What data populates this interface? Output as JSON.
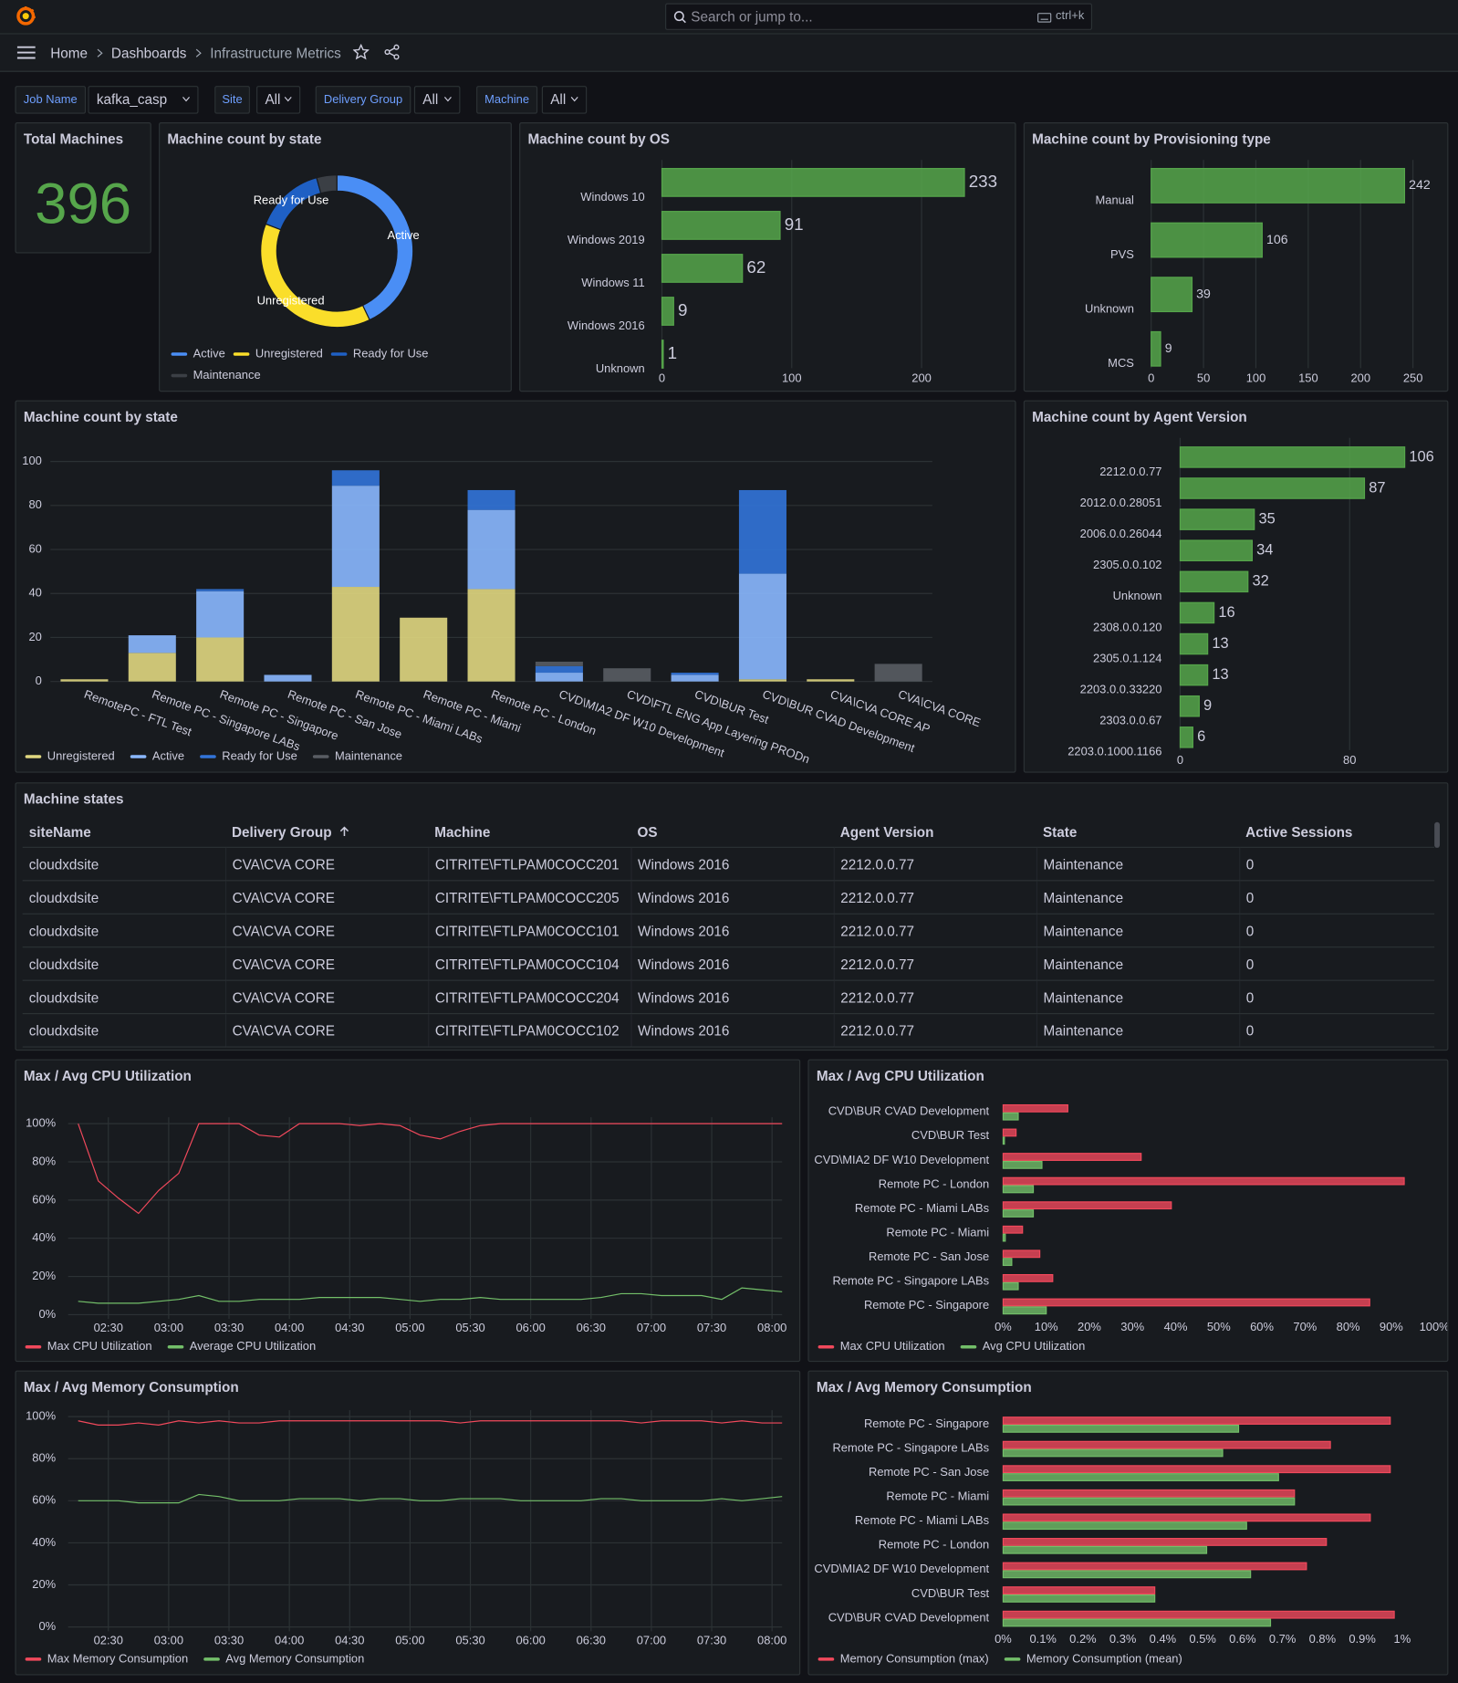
{
  "header": {
    "search_placeholder": "Search or jump to...",
    "shortcut": "ctrl+k",
    "breadcrumbs": [
      "Home",
      "Dashboards",
      "Infrastructure Metrics"
    ]
  },
  "filters": [
    {
      "label": "Job Name",
      "value": "kafka_casp"
    },
    {
      "label": "Site",
      "value": "All"
    },
    {
      "label": "Delivery Group",
      "value": "All"
    },
    {
      "label": "Machine",
      "value": "All"
    }
  ],
  "stat": {
    "title": "Total Machines",
    "value": 396,
    "color": "#56a64b"
  },
  "chart_data": [
    {
      "type": "pie",
      "title": "Machine count by state",
      "donut": true,
      "labels": [
        "Active",
        "Unregistered",
        "Ready for Use",
        "Maintenance"
      ],
      "values": [
        170,
        150,
        59,
        17
      ],
      "colors": [
        "#4a8ef5",
        "#fade2a",
        "#1f60c4",
        "#3b3f45"
      ],
      "legend": "bottom"
    },
    {
      "type": "hbar",
      "title": "Machine count by OS",
      "categories": [
        "Windows 10",
        "Windows 2019",
        "Windows 11",
        "Windows 2016",
        "Unknown"
      ],
      "values": [
        233,
        91,
        62,
        9,
        1
      ],
      "color": "#56a64b",
      "xlim": [
        0,
        250
      ],
      "xticks": [
        0,
        100,
        200
      ],
      "grid": true
    },
    {
      "type": "hbar",
      "title": "Machine count by Provisioning type",
      "categories": [
        "Manual",
        "PVS",
        "Unknown",
        "MCS"
      ],
      "values": [
        242,
        106,
        39,
        9
      ],
      "color": "#56a64b",
      "xlim": [
        0,
        275
      ],
      "xticks": [
        0,
        50,
        100,
        150,
        200,
        250
      ],
      "grid": true
    },
    {
      "type": "stacked_bar",
      "title": "Machine count by state",
      "categories": [
        "RemotePC - FTL Test",
        "Remote PC - Singapore LABs",
        "Remote PC - Singapore",
        "Remote PC - San Jose",
        "Remote PC - Miami LABs",
        "Remote PC - Miami",
        "Remote PC - London",
        "CVD\\MIA2 DF W10 Development",
        "CVD\\FTL ENG App Layering PRODn",
        "CVD\\BUR Test",
        "CVD\\BUR CVAD Development",
        "CVA\\CVA CORE AP",
        "CVA\\CVA CORE"
      ],
      "series": [
        {
          "name": "Unregistered",
          "color": "#e0d780",
          "values": [
            1,
            13,
            20,
            0,
            43,
            29,
            42,
            0,
            0,
            0,
            1,
            1,
            0
          ]
        },
        {
          "name": "Active",
          "color": "#8ab8ff",
          "values": [
            0,
            8,
            21,
            3,
            46,
            0,
            36,
            4,
            0,
            3,
            48,
            0,
            0
          ]
        },
        {
          "name": "Ready for Use",
          "color": "#3274d9",
          "values": [
            0,
            0,
            1,
            0,
            7,
            0,
            9,
            3,
            0,
            1,
            38,
            0,
            0
          ]
        },
        {
          "name": "Maintenance",
          "color": "#595d63",
          "values": [
            0,
            0,
            0,
            0,
            0,
            0,
            0,
            2,
            6,
            0,
            0,
            0,
            8
          ]
        }
      ],
      "ylim": [
        0,
        100
      ],
      "yticks": [
        0,
        20,
        40,
        60,
        80,
        100
      ],
      "grid": true,
      "legend": "bottom"
    },
    {
      "type": "hbar",
      "title": "Machine count by Agent Version",
      "categories": [
        "2212.0.0.77",
        "2012.0.0.28051",
        "2006.0.0.26044",
        "2305.0.0.102",
        "Unknown",
        "2308.0.0.120",
        "2305.0.1.124",
        "2203.0.0.33220",
        "2303.0.0.67",
        "2203.0.1000.1166"
      ],
      "values": [
        106,
        87,
        35,
        34,
        32,
        16,
        13,
        13,
        9,
        6
      ],
      "color": "#56a64b",
      "xlim": [
        0,
        120
      ],
      "xticks": [
        0,
        80
      ],
      "grid": true
    },
    {
      "type": "line",
      "title": "Max / Avg CPU Utilization",
      "x": [
        "02:15",
        "02:25",
        "02:35",
        "02:45",
        "02:55",
        "03:05",
        "03:15",
        "03:25",
        "03:35",
        "03:45",
        "03:55",
        "04:05",
        "04:15",
        "04:25",
        "04:35",
        "04:45",
        "04:55",
        "05:05",
        "05:15",
        "05:25",
        "05:35",
        "05:45",
        "05:55",
        "06:05",
        "06:15",
        "06:25",
        "06:35",
        "06:45",
        "06:55",
        "07:05",
        "07:15",
        "07:25",
        "07:35",
        "07:45",
        "07:55",
        "08:05"
      ],
      "series": [
        {
          "name": "Max CPU Utilization",
          "color": "#f2495c",
          "values": [
            100,
            70,
            61,
            53,
            65,
            74,
            100,
            100,
            100,
            94,
            93,
            100,
            100,
            100,
            99,
            100,
            99,
            94,
            92,
            96,
            99,
            100,
            100,
            100,
            100,
            100,
            100,
            100,
            100,
            100,
            100,
            100,
            100,
            100,
            100,
            100
          ]
        },
        {
          "name": "Average CPU Utilization",
          "color": "#73bf69",
          "values": [
            7,
            6,
            6,
            6,
            7,
            8,
            10,
            7,
            7,
            8,
            8,
            8,
            9,
            9,
            9,
            9,
            8,
            7,
            8,
            8,
            9,
            8,
            8,
            8,
            8,
            8,
            9,
            11,
            11,
            10,
            10,
            10,
            8,
            14,
            13,
            12
          ]
        }
      ],
      "xlim": [
        "02:10",
        "08:05"
      ],
      "xticks": [
        "02:30",
        "03:00",
        "03:30",
        "04:00",
        "04:30",
        "05:00",
        "05:30",
        "06:00",
        "06:30",
        "07:00",
        "07:30",
        "08:00"
      ],
      "ylim": [
        0,
        100
      ],
      "yticks": [
        {
          "value": 0,
          "label": "0%"
        },
        {
          "value": 20,
          "label": "20%"
        },
        {
          "value": 40,
          "label": "40%"
        },
        {
          "value": 60,
          "label": "60%"
        },
        {
          "value": 80,
          "label": "80%"
        },
        {
          "value": 100,
          "label": "100%"
        }
      ],
      "grid": true,
      "legend": "bottom"
    },
    {
      "type": "grouped_hbar",
      "title": "Max / Avg CPU Utilization",
      "categories": [
        "CVD\\BUR CVAD Development",
        "CVD\\BUR Test",
        "CVD\\MIA2 DF W10 Development",
        "Remote PC - London",
        "Remote PC - Miami LABs",
        "Remote PC - Miami",
        "Remote PC - San Jose",
        "Remote PC - Singapore LABs",
        "Remote PC - Singapore"
      ],
      "series": [
        {
          "name": "Max CPU Utilization",
          "color": "#f2495c",
          "values": [
            15,
            3,
            32,
            93,
            39,
            4.5,
            8.5,
            11.5,
            85
          ]
        },
        {
          "name": "Avg CPU Utilization",
          "color": "#73bf69",
          "values": [
            3.5,
            0.3,
            9,
            7,
            7,
            0.5,
            2,
            3.5,
            10
          ]
        }
      ],
      "xlim": [
        0,
        100
      ],
      "xticks": [
        {
          "value": 0,
          "label": "0%"
        },
        {
          "value": 10,
          "label": "10%"
        },
        {
          "value": 20,
          "label": "20%"
        },
        {
          "value": 30,
          "label": "30%"
        },
        {
          "value": 40,
          "label": "40%"
        },
        {
          "value": 50,
          "label": "50%"
        },
        {
          "value": 60,
          "label": "60%"
        },
        {
          "value": 70,
          "label": "70%"
        },
        {
          "value": 80,
          "label": "80%"
        },
        {
          "value": 90,
          "label": "90%"
        },
        {
          "value": 100,
          "label": "100%"
        }
      ],
      "legend": "bottom"
    },
    {
      "type": "line",
      "title": "Max / Avg Memory Consumption",
      "x": [
        "02:15",
        "02:25",
        "02:35",
        "02:45",
        "02:55",
        "03:05",
        "03:15",
        "03:25",
        "03:35",
        "03:45",
        "03:55",
        "04:05",
        "04:15",
        "04:25",
        "04:35",
        "04:45",
        "04:55",
        "05:05",
        "05:15",
        "05:25",
        "05:35",
        "05:45",
        "05:55",
        "06:05",
        "06:15",
        "06:25",
        "06:35",
        "06:45",
        "06:55",
        "07:05",
        "07:15",
        "07:25",
        "07:35",
        "07:45",
        "07:55",
        "08:05"
      ],
      "series": [
        {
          "name": "Max Memory Consumption",
          "color": "#f2495c",
          "values": [
            98,
            96,
            96,
            97,
            96,
            98,
            97,
            98,
            97,
            97,
            98,
            98,
            98,
            98,
            98,
            98,
            98,
            98,
            98,
            97,
            98,
            98,
            98,
            98,
            98,
            98,
            98,
            98,
            97,
            98,
            98,
            98,
            97,
            98,
            97,
            97
          ]
        },
        {
          "name": "Avg Memory Consumption",
          "color": "#73bf69",
          "values": [
            60,
            60,
            60,
            59,
            59,
            59,
            63,
            62,
            60,
            60,
            60,
            61,
            61,
            61,
            60,
            61,
            61,
            60,
            60,
            61,
            61,
            61,
            60,
            60,
            60,
            60,
            61,
            61,
            60,
            60,
            60,
            60,
            61,
            60,
            61,
            62
          ]
        }
      ],
      "xlim": [
        "02:10",
        "08:05"
      ],
      "xticks": [
        "02:30",
        "03:00",
        "03:30",
        "04:00",
        "04:30",
        "05:00",
        "05:30",
        "06:00",
        "06:30",
        "07:00",
        "07:30",
        "08:00"
      ],
      "ylim": [
        0,
        100
      ],
      "yticks": [
        {
          "value": 0,
          "label": "0%"
        },
        {
          "value": 20,
          "label": "20%"
        },
        {
          "value": 40,
          "label": "40%"
        },
        {
          "value": 60,
          "label": "60%"
        },
        {
          "value": 80,
          "label": "80%"
        },
        {
          "value": 100,
          "label": "100%"
        }
      ],
      "grid": true,
      "legend": "bottom"
    },
    {
      "type": "grouped_hbar",
      "title": "Max / Avg Memory Consumption",
      "categories": [
        "Remote PC - Singapore",
        "Remote PC - Singapore LABs",
        "Remote PC - San Jose",
        "Remote PC - Miami",
        "Remote PC - Miami LABs",
        "Remote PC - London",
        "CVD\\MIA2 DF W10 Development",
        "CVD\\BUR Test",
        "CVD\\BUR CVAD Development"
      ],
      "series": [
        {
          "name": "Memory Consumption (max)",
          "color": "#f2495c",
          "values": [
            0.97,
            0.82,
            0.97,
            0.73,
            0.92,
            0.81,
            0.76,
            0.38,
            0.98
          ]
        },
        {
          "name": "Memory Consumption (mean)",
          "color": "#73bf69",
          "values": [
            0.59,
            0.55,
            0.69,
            0.73,
            0.61,
            0.51,
            0.62,
            0.38,
            0.67
          ]
        }
      ],
      "xlim": [
        0,
        1
      ],
      "xticks": [
        {
          "value": 0,
          "label": "0%"
        },
        {
          "value": 0.1,
          "label": "0.1%"
        },
        {
          "value": 0.2,
          "label": "0.2%"
        },
        {
          "value": 0.3,
          "label": "0.3%"
        },
        {
          "value": 0.4,
          "label": "0.4%"
        },
        {
          "value": 0.5,
          "label": "0.5%"
        },
        {
          "value": 0.6,
          "label": "0.6%"
        },
        {
          "value": 0.7,
          "label": "0.7%"
        },
        {
          "value": 0.8,
          "label": "0.8%"
        },
        {
          "value": 0.9,
          "label": "0.9%"
        },
        {
          "value": 1,
          "label": "1%"
        }
      ],
      "legend": "bottom"
    }
  ],
  "table": {
    "title": "Machine states",
    "columns": [
      "siteName",
      "Delivery Group",
      "Machine",
      "OS",
      "Agent Version",
      "State",
      "Active Sessions"
    ],
    "rows": [
      [
        "cloudxdsite",
        "CVA\\CVA CORE",
        "CITRITE\\FTLPAM0COCC201",
        "Windows 2016",
        "2212.0.0.77",
        "Maintenance",
        0
      ],
      [
        "cloudxdsite",
        "CVA\\CVA CORE",
        "CITRITE\\FTLPAM0COCC205",
        "Windows 2016",
        "2212.0.0.77",
        "Maintenance",
        0
      ],
      [
        "cloudxdsite",
        "CVA\\CVA CORE",
        "CITRITE\\FTLPAM0COCC101",
        "Windows 2016",
        "2212.0.0.77",
        "Maintenance",
        0
      ],
      [
        "cloudxdsite",
        "CVA\\CVA CORE",
        "CITRITE\\FTLPAM0COCC104",
        "Windows 2016",
        "2212.0.0.77",
        "Maintenance",
        0
      ],
      [
        "cloudxdsite",
        "CVA\\CVA CORE",
        "CITRITE\\FTLPAM0COCC204",
        "Windows 2016",
        "2212.0.0.77",
        "Maintenance",
        0
      ],
      [
        "cloudxdsite",
        "CVA\\CVA CORE",
        "CITRITE\\FTLPAM0COCC102",
        "Windows 2016",
        "2212.0.0.77",
        "Maintenance",
        0
      ]
    ]
  }
}
